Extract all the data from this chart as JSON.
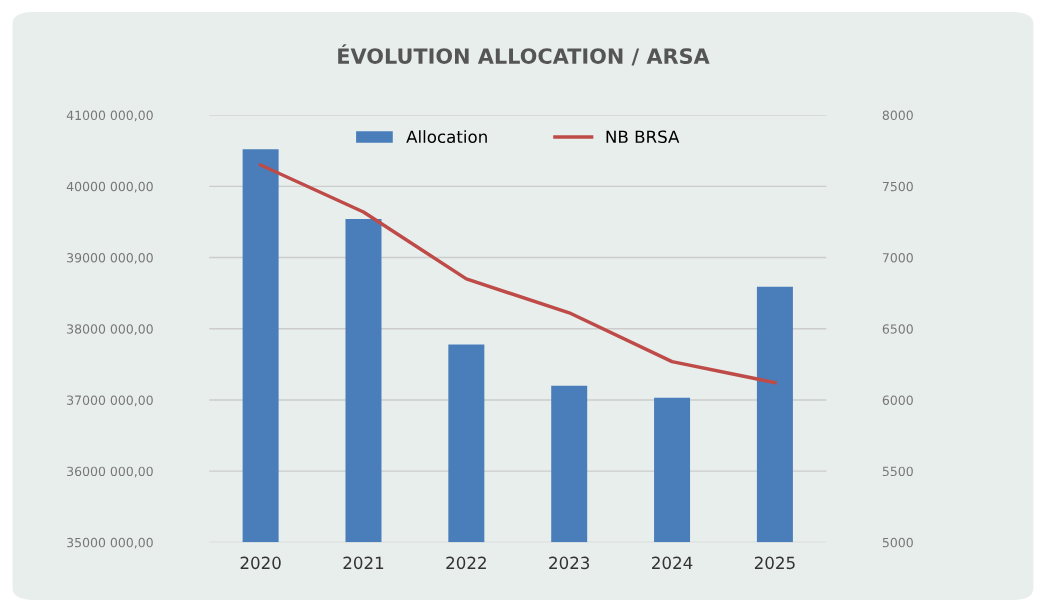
{
  "chart_data": {
    "type": "bar",
    "title": "ÉVOLUTION ALLOCATION / ARSA",
    "categories": [
      "2020",
      "2021",
      "2022",
      "2023",
      "2024",
      "2025"
    ],
    "series": [
      {
        "name": "Allocation",
        "color": "#4a7ebb",
        "values": [
          40520000,
          39540000,
          37780000,
          37200000,
          37030000,
          38590000
        ]
      },
      {
        "name": "NB BRSA",
        "type": "line",
        "axis": "y2",
        "color": "#be4b48",
        "values": [
          7650,
          7320,
          6850,
          6612,
          6269,
          6122
        ]
      }
    ],
    "ylim": [
      35000000,
      41000000
    ],
    "yticks": [
      {
        "value": 35000000,
        "label": "35000 000,00"
      },
      {
        "value": 36000000,
        "label": "36000 000,00"
      },
      {
        "value": 37000000,
        "label": "37000 000,00"
      },
      {
        "value": 38000000,
        "label": "38000 000,00"
      },
      {
        "value": 39000000,
        "label": "39000 000,00"
      },
      {
        "value": 40000000,
        "label": "40000 000,00"
      },
      {
        "value": 41000000,
        "label": "41000 000,00"
      }
    ],
    "y2lim": [
      5000,
      8000
    ],
    "y2ticks": [
      5000,
      5500,
      6000,
      6500,
      7000,
      7500,
      8000
    ],
    "grid": "y",
    "legend": "top",
    "marker": "none",
    "line_style": "solid"
  }
}
